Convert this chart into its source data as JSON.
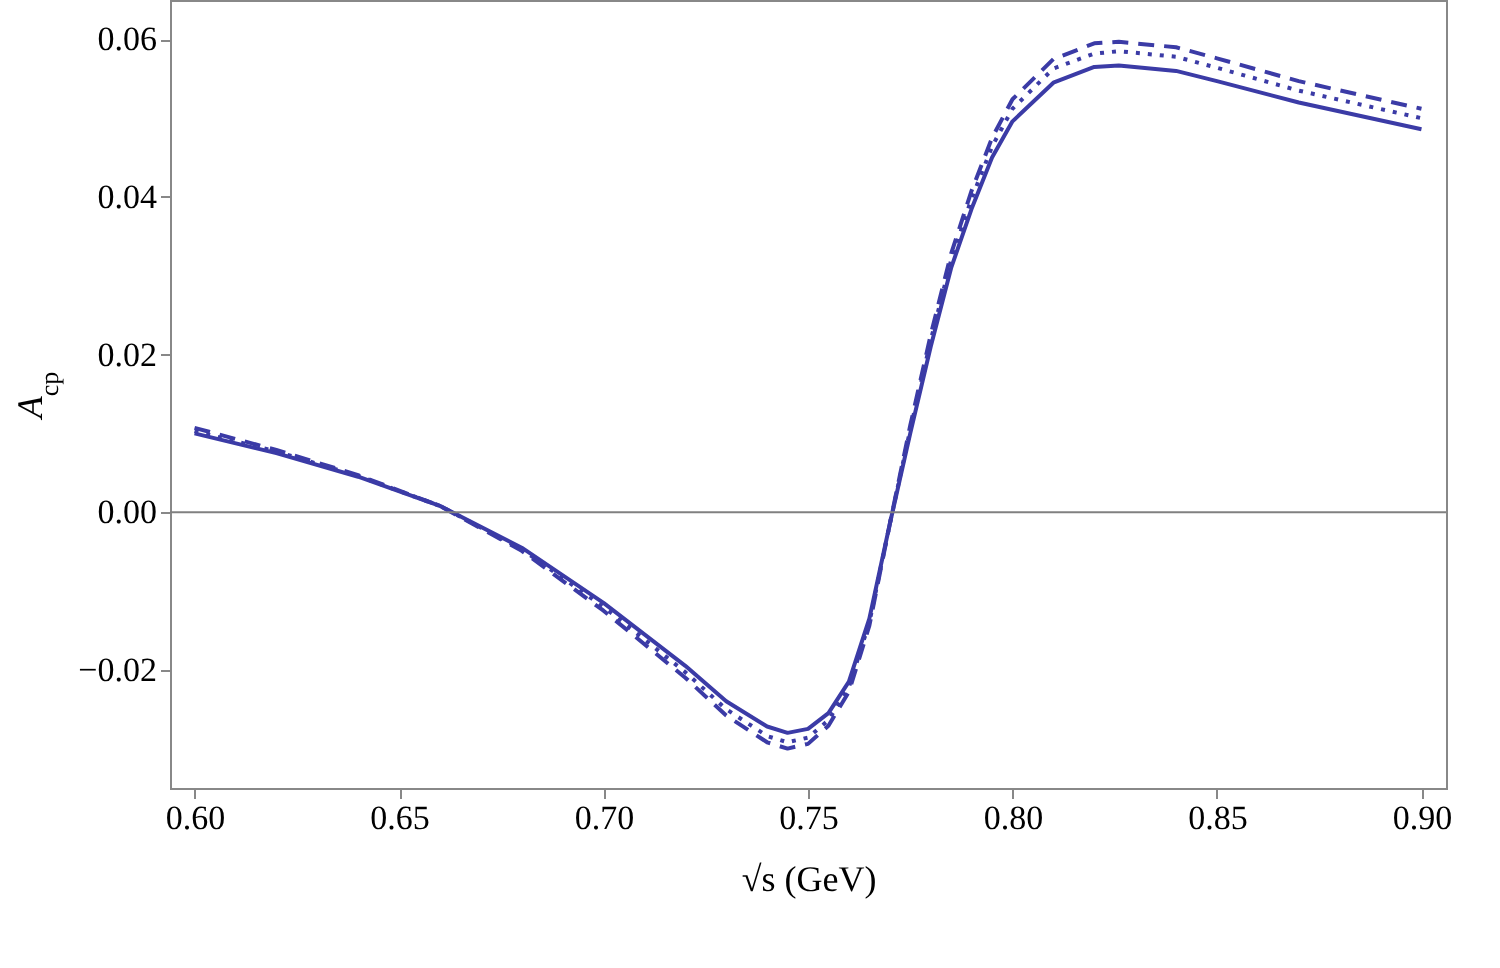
{
  "chart_data": {
    "type": "line",
    "xlabel": "√s (GeV)",
    "ylabel": "A$_{cp}$",
    "x": [
      0.6,
      0.62,
      0.64,
      0.66,
      0.68,
      0.7,
      0.72,
      0.73,
      0.74,
      0.745,
      0.75,
      0.755,
      0.76,
      0.765,
      0.77,
      0.775,
      0.78,
      0.785,
      0.79,
      0.795,
      0.8,
      0.81,
      0.82,
      0.826,
      0.84,
      0.85,
      0.87,
      0.9
    ],
    "series": [
      {
        "color": "#3b3ba6",
        "line_style": "solid",
        "values": [
          0.01,
          0.0075,
          0.0045,
          0.0008,
          -0.0045,
          -0.0115,
          -0.0195,
          -0.024,
          -0.0272,
          -0.028,
          -0.0275,
          -0.0255,
          -0.0215,
          -0.0135,
          -0.0015,
          0.01,
          0.021,
          0.031,
          0.0385,
          0.045,
          0.0496,
          0.0545,
          0.0565,
          0.0567,
          0.056,
          0.0547,
          0.052,
          0.0486
        ]
      },
      {
        "color": "#3b3ba6",
        "line_style": "dotted",
        "values": [
          0.0103,
          0.0077,
          0.0046,
          0.0008,
          -0.0047,
          -0.012,
          -0.0203,
          -0.025,
          -0.0284,
          -0.0292,
          -0.0286,
          -0.0264,
          -0.0222,
          -0.014,
          -0.0015,
          0.0105,
          0.0218,
          0.032,
          0.0398,
          0.0464,
          0.0512,
          0.0563,
          0.0582,
          0.0585,
          0.0578,
          0.0564,
          0.0535,
          0.05
        ]
      },
      {
        "color": "#3b3ba6",
        "line_style": "dashed",
        "values": [
          0.0107,
          0.0079,
          0.0047,
          0.0008,
          -0.0049,
          -0.0125,
          -0.021,
          -0.0258,
          -0.0292,
          -0.03,
          -0.0294,
          -0.0271,
          -0.0228,
          -0.0144,
          -0.0015,
          0.011,
          0.0225,
          0.0328,
          0.0408,
          0.0475,
          0.0524,
          0.0575,
          0.0595,
          0.0597,
          0.059,
          0.0576,
          0.0547,
          0.0512
        ]
      }
    ],
    "xlim": [
      0.594,
      0.906
    ],
    "ylim": [
      -0.035,
      0.065
    ],
    "xticks": [
      {
        "value": 0.6,
        "label": "0.60"
      },
      {
        "value": 0.65,
        "label": "0.65"
      },
      {
        "value": 0.7,
        "label": "0.70"
      },
      {
        "value": 0.75,
        "label": "0.75"
      },
      {
        "value": 0.8,
        "label": "0.80"
      },
      {
        "value": 0.85,
        "label": "0.85"
      },
      {
        "value": 0.9,
        "label": "0.90"
      }
    ],
    "yticks": [
      {
        "value": -0.02,
        "label": "−0.02"
      },
      {
        "value": 0,
        "label": "0.00"
      },
      {
        "value": 0.02,
        "label": "0.02"
      },
      {
        "value": 0.04,
        "label": "0.04"
      },
      {
        "value": 0.06,
        "label": "0.06"
      }
    ],
    "ref_lines": [
      {
        "axis": "y",
        "value": 0,
        "color": "#808080"
      }
    ]
  }
}
